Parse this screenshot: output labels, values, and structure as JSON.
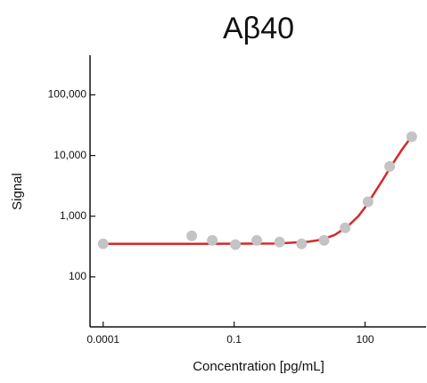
{
  "chart_data": {
    "type": "scatter",
    "title": "Aβ40",
    "x_label": "Concentration   [pg/mL]",
    "y_label": "Signal",
    "x": [
      0.0001,
      0.0107,
      0.0316,
      0.107,
      0.33,
      1.1,
      3.5,
      11.5,
      35,
      117,
      365,
      1170
    ],
    "values": [
      350,
      475,
      400,
      340,
      400,
      375,
      350,
      400,
      645,
      1730,
      6600,
      20400
    ],
    "color": "#c4c4c4",
    "fit": {
      "x": [
        0.0001,
        0.01,
        1,
        5,
        10,
        20,
        40,
        70,
        100,
        150,
        250,
        400,
        700,
        1100
      ],
      "values": [
        350,
        350,
        355,
        380,
        410,
        490,
        680,
        1000,
        1400,
        2200,
        3900,
        6800,
        12500,
        19500
      ],
      "color": "#d42a2a"
    },
    "log_x": true,
    "log_y": true,
    "xlim": [
      5e-05,
      2500
    ],
    "ylim": [
      15,
      450000
    ],
    "xticks": [
      0.0001,
      0.1,
      100
    ],
    "yticks": [
      {
        "value": 100,
        "label": "100"
      },
      {
        "value": 1000,
        "label": "1,000"
      },
      {
        "value": 10000,
        "label": "10,000"
      },
      {
        "value": 100000,
        "label": "100,000"
      }
    ]
  }
}
